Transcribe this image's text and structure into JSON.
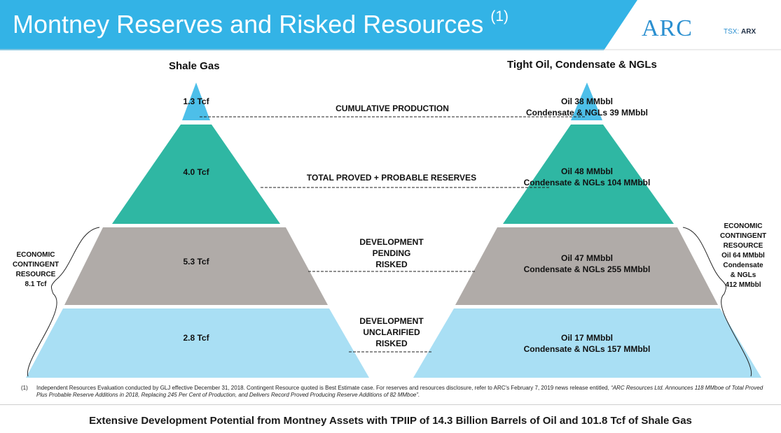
{
  "header": {
    "title": "Montney Reserves and Risked Resources",
    "footnote_marker": "(1)",
    "logo_text": "ARC",
    "ticker_prefix": "TSX:",
    "ticker_symbol": "ARX"
  },
  "colors": {
    "header_blue": "#33b3e6",
    "cumulative": "#4dbfe9",
    "proved_probable": "#2fb7a3",
    "development_pending": "#b0aba8",
    "development_unclarified": "#a9dff4"
  },
  "left_pyramid": {
    "heading": "Shale Gas",
    "tiers": [
      {
        "value": "1.3 Tcf"
      },
      {
        "value": "4.0 Tcf"
      },
      {
        "value": "5.3 Tcf"
      },
      {
        "value": "2.8 Tcf"
      }
    ],
    "contingent": {
      "line1": "ECONOMIC",
      "line2": "CONTINGENT",
      "line3": "RESOURCE",
      "line4": "8.1 Tcf"
    }
  },
  "right_pyramid": {
    "heading": "Tight Oil, Condensate & NGLs",
    "tiers": [
      {
        "oil": "Oil 38 MMbbl",
        "cond": "Condensate & NGLs 39 MMbbl"
      },
      {
        "oil": "Oil 48 MMbbl",
        "cond": "Condensate & NGLs 104 MMbbl"
      },
      {
        "oil": "Oil 47 MMbbl",
        "cond": "Condensate & NGLs 255 MMbbl"
      },
      {
        "oil": "Oil 17 MMbbl",
        "cond": "Condensate & NGLs 157 MMbbl"
      }
    ],
    "contingent": {
      "line1": "ECONOMIC",
      "line2": "CONTINGENT",
      "line3": "RESOURCE",
      "line4": "Oil 64 MMbbl",
      "line5": "Condensate",
      "line6": "& NGLs",
      "line7": "412 MMbbl"
    }
  },
  "categories": {
    "cumulative": "CUMULATIVE PRODUCTION",
    "proved_probable": "TOTAL PROVED + PROBABLE RESERVES",
    "pending": {
      "line1": "DEVELOPMENT",
      "line2": "PENDING",
      "line3": "RISKED"
    },
    "unclarified": {
      "line1": "DEVELOPMENT",
      "line2": "UNCLARIFIED",
      "line3": "RISKED"
    }
  },
  "footnote": {
    "number": "(1)",
    "text": "Independent Resources Evaluation conducted by GLJ effective December 31, 2018. Contingent Resource quoted is Best Estimate case. For reserves and resources disclosure, refer to ARC's February 7, 2019 news release entitled, ",
    "title": "“ARC Resources Ltd. Announces 118 MMboe of Total Proved Plus Probable Reserve Additions in 2018, Replacing 245 Per Cent of Production, and Delivers Record Proved Producing Reserve Additions of 82 MMboe”."
  },
  "tagline": "Extensive Development Potential from Montney Assets with TPIIP of 14.3 Billion Barrels of Oil and 101.8 Tcf of Shale Gas"
}
